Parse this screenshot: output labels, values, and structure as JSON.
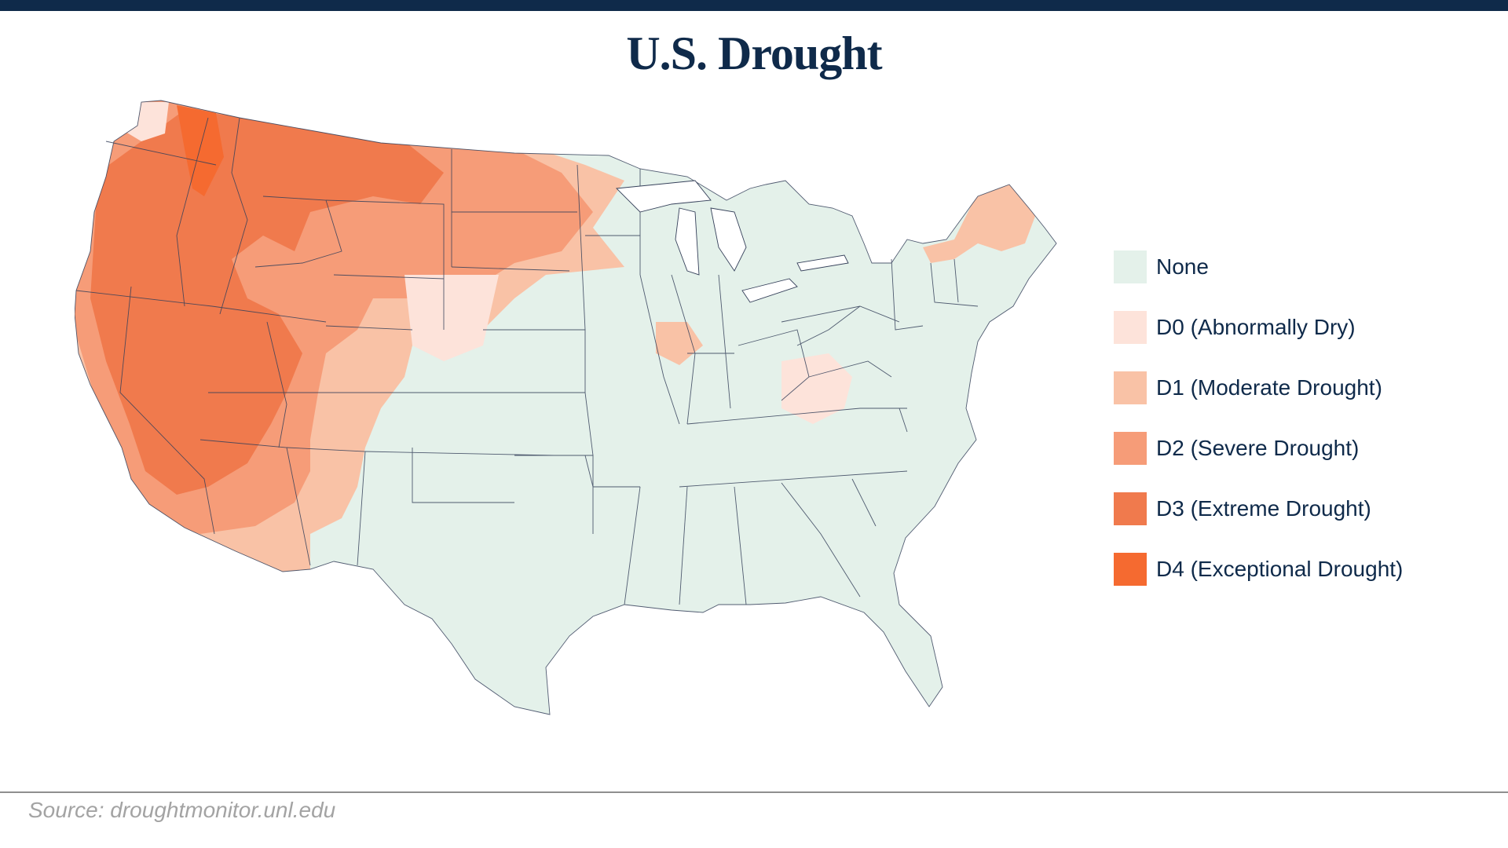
{
  "title": "U.S. Drought",
  "legend": [
    {
      "label": "None",
      "color": "#e4f1ea"
    },
    {
      "label": "D0 (Abnormally Dry)",
      "color": "#fde3da"
    },
    {
      "label": "D1 (Moderate Drought)",
      "color": "#f9c2a6"
    },
    {
      "label": "D2 (Severe Drought)",
      "color": "#f69c78"
    },
    {
      "label": "D3 (Extreme Drought)",
      "color": "#f07a4d"
    },
    {
      "label": "D4 (Exceptional Drought)",
      "color": "#f56a30"
    }
  ],
  "source": "Source: droughtmonitor.unl.edu",
  "colors": {
    "title": "#0f2a4a",
    "border": "#35405a",
    "top_bar": "#0f2a4a"
  }
}
